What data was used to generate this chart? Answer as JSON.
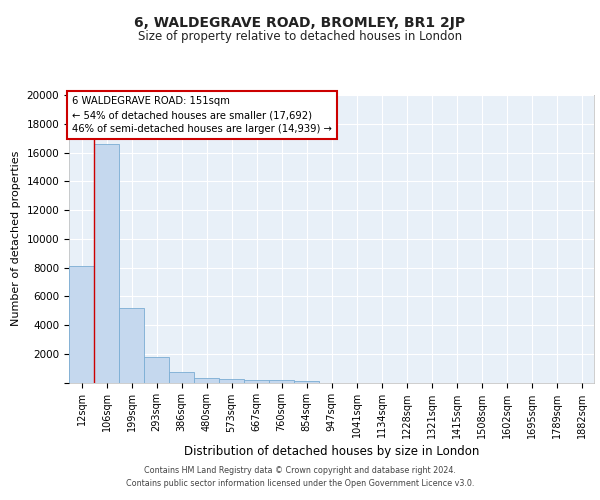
{
  "title": "6, WALDEGRAVE ROAD, BROMLEY, BR1 2JP",
  "subtitle": "Size of property relative to detached houses in London",
  "xlabel": "Distribution of detached houses by size in London",
  "ylabel": "Number of detached properties",
  "bar_labels": [
    "12sqm",
    "106sqm",
    "199sqm",
    "293sqm",
    "386sqm",
    "480sqm",
    "573sqm",
    "667sqm",
    "760sqm",
    "854sqm",
    "947sqm",
    "1041sqm",
    "1134sqm",
    "1228sqm",
    "1321sqm",
    "1415sqm",
    "1508sqm",
    "1602sqm",
    "1695sqm",
    "1789sqm",
    "1882sqm"
  ],
  "bar_values": [
    8100,
    16600,
    5200,
    1750,
    700,
    310,
    230,
    200,
    160,
    130,
    0,
    0,
    0,
    0,
    0,
    0,
    0,
    0,
    0,
    0,
    0
  ],
  "bar_color": "#c5d8ee",
  "bar_edge_color": "#7aadd4",
  "background_color": "#e8f0f8",
  "grid_color": "#ffffff",
  "red_line_x": 0.5,
  "annotation_line1": "6 WALDEGRAVE ROAD: 151sqm",
  "annotation_line2": "← 54% of detached houses are smaller (17,692)",
  "annotation_line3": "46% of semi-detached houses are larger (14,939) →",
  "box_facecolor": "#ffffff",
  "box_edgecolor": "#cc0000",
  "ylim": [
    0,
    20000
  ],
  "yticks": [
    0,
    2000,
    4000,
    6000,
    8000,
    10000,
    12000,
    14000,
    16000,
    18000,
    20000
  ],
  "footer_line1": "Contains HM Land Registry data © Crown copyright and database right 2024.",
  "footer_line2": "Contains public sector information licensed under the Open Government Licence v3.0."
}
